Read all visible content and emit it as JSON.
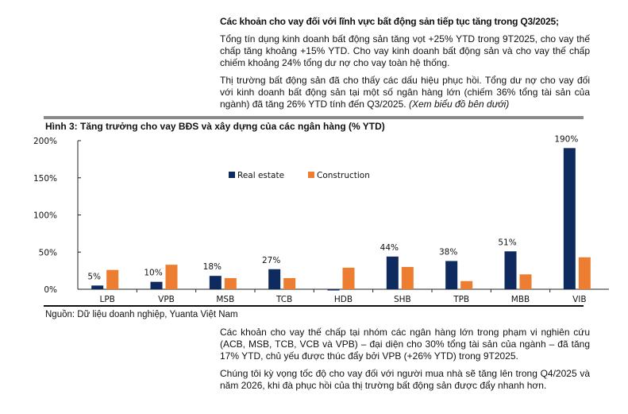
{
  "text": {
    "heading": "Các khoản cho vay đối với lĩnh vực bất động sản tiếp tục tăng trong Q3/2025;",
    "para1": "Tổng tín dụng kinh doanh bất động sản tăng vọt +25% YTD trong 9T2025, cho vay thế chấp tăng khoảng +15% YTD. Cho vay kinh doanh bất động sản và cho vay thế chấp chiếm khoảng 24% tổng dư nợ cho vay toàn hệ thống.",
    "para2": "Thị trường bất động sản đã cho thấy các dấu hiệu phục hồi. Tổng dư nợ cho vay đối với kinh doanh bất động sản tại một số ngân hàng lớn (chiếm 36% tổng tài sản của ngành) đã tăng 26% YTD tính đến Q3/2025.",
    "para2_italic": "(Xem biểu đồ bên dưới)",
    "source": "Nguồn: Dữ liệu doanh nghiệp, Yuanta Việt Nam",
    "para3": "Các khoản cho vay thế chấp tại nhóm các ngân hàng lớn trong phạm vi nghiên cứu (ACB, MSB, TCB, VCB và VPB) – đại diện cho 30% tổng tài sản của ngành – đã tăng 17% YTD, chủ yếu được thúc đẩy bởi VPB (+26% YTD) trong 9T2025.",
    "para4": "Chúng tôi kỳ vọng tốc độ cho vay đối với người mua nhà sẽ tăng lên trong Q4/2025 và năm 2026, khi đà phục hồi của thị trường bất động sản được đẩy nhanh hơn."
  },
  "chart_data": {
    "type": "bar",
    "title": "Hình 3: Tăng trưởng cho vay BĐS và xây dựng của các ngân hàng (% YTD)",
    "categories": [
      "LPB",
      "VPB",
      "MSB",
      "TCB",
      "HDB",
      "SHB",
      "TPB",
      "MBB",
      "VIB"
    ],
    "series": [
      {
        "name": "Real estate",
        "color": "#0f2a5f",
        "values": [
          5,
          10,
          18,
          27,
          -1,
          44,
          38,
          51,
          190
        ],
        "data_labels": [
          "5%",
          "10%",
          "18%",
          "27%",
          "",
          "44%",
          "38%",
          "51%",
          "190%"
        ]
      },
      {
        "name": "Construction",
        "color": "#ed7d31",
        "values": [
          26,
          33,
          15,
          15,
          29,
          30,
          11,
          20,
          43
        ]
      }
    ],
    "ylim": [
      0,
      200
    ],
    "yticks": [
      {
        "v": 0,
        "label": "0%"
      },
      {
        "v": 50,
        "label": "50%"
      },
      {
        "v": 100,
        "label": "100%"
      },
      {
        "v": 150,
        "label": "150%"
      },
      {
        "v": 200,
        "label": "200%"
      }
    ],
    "legend": "top-center",
    "grid": false
  }
}
